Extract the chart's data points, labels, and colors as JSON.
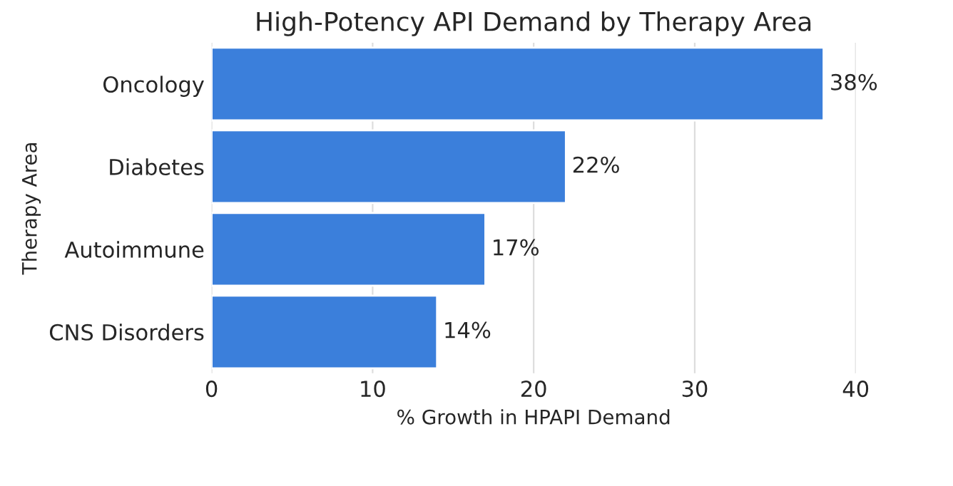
{
  "chart_data": {
    "type": "bar",
    "orientation": "horizontal",
    "title": "High-Potency API Demand by Therapy Area",
    "xlabel": "% Growth in HPAPI Demand",
    "ylabel": "Therapy Area",
    "categories": [
      "Oncology",
      "Diabetes",
      "Autoimmune",
      "CNS Disorders"
    ],
    "values": [
      38,
      22,
      17,
      14
    ],
    "value_labels": [
      "38%",
      "22%",
      "17%",
      "14%"
    ],
    "color": "#3b7fdb",
    "xlim": [
      0,
      40
    ],
    "xticks": [
      0,
      10,
      20,
      30,
      40
    ],
    "grid": "x"
  }
}
